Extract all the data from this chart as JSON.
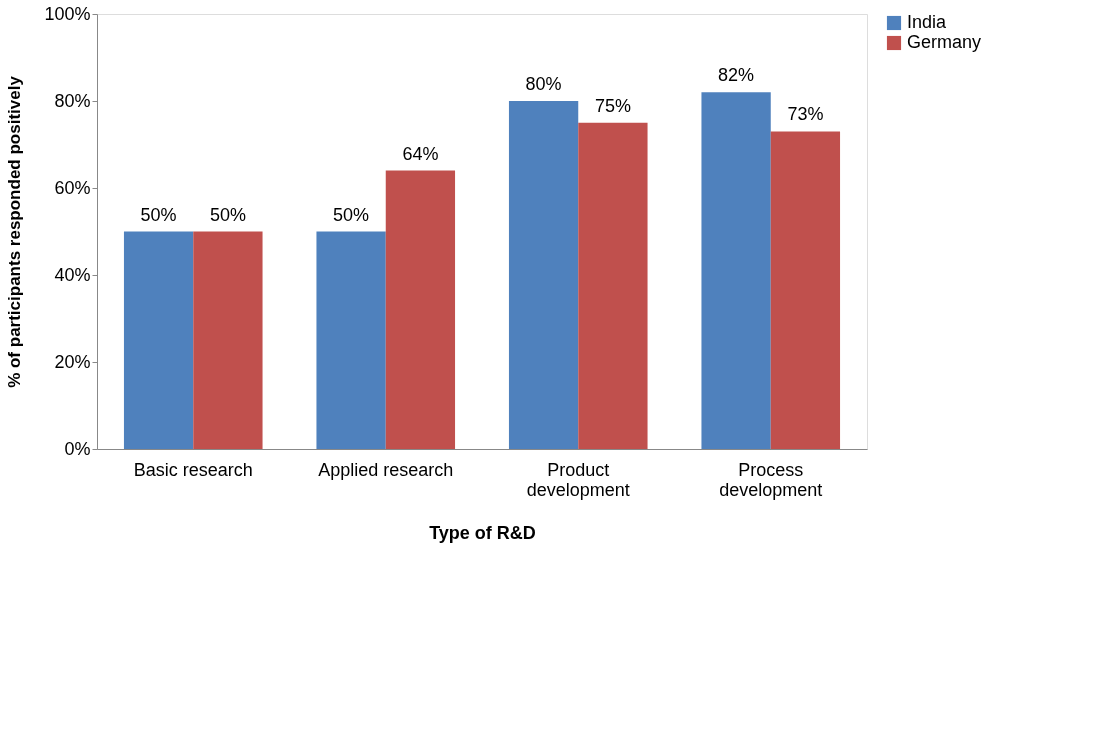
{
  "chart_data": {
    "type": "bar",
    "xlabel": "Type of R&D",
    "ylabel": "% of participants  responded positively",
    "categories": [
      "Basic research",
      "Applied research",
      "Product development",
      "Process development"
    ],
    "series": [
      {
        "name": "India",
        "color": "#4f81bd",
        "values": [
          50,
          50,
          80,
          82
        ],
        "value_labels": [
          "50%",
          "50%",
          "80%",
          "82%"
        ]
      },
      {
        "name": "Germany",
        "color": "#c0504d",
        "values": [
          50,
          64,
          75,
          73
        ],
        "value_labels": [
          "50%",
          "64%",
          "75%",
          "73%"
        ]
      }
    ],
    "ylim": [
      0,
      100
    ],
    "yticks": [
      {
        "value": 0,
        "label": "0%"
      },
      {
        "value": 20,
        "label": "20%"
      },
      {
        "value": 40,
        "label": "40%"
      },
      {
        "value": 60,
        "label": "60%"
      },
      {
        "value": 80,
        "label": "80%"
      },
      {
        "value": 100,
        "label": "100%"
      }
    ],
    "grid": false,
    "legend": "right"
  }
}
